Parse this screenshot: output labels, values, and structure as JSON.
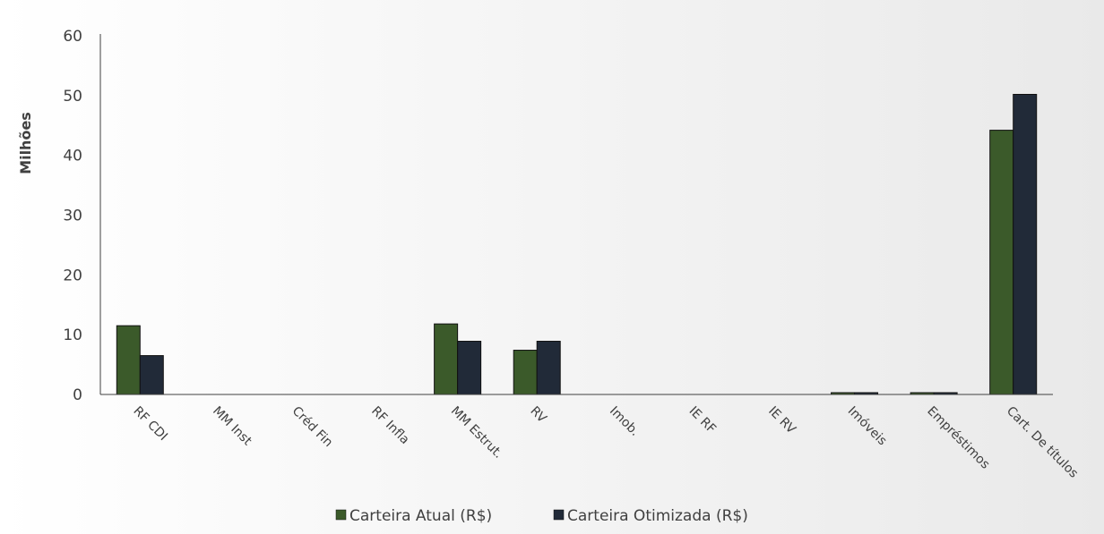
{
  "chart_data": {
    "type": "bar",
    "title": "",
    "xlabel": "",
    "ylabel": "Milhões",
    "ylim": [
      0,
      60
    ],
    "yticks": [
      0,
      10,
      20,
      30,
      40,
      50,
      60
    ],
    "grid": false,
    "legend_position": "bottom",
    "categories": [
      "RF CDI",
      "MM Inst",
      "Créd Fin",
      "RF Infla",
      "MM Estrut.",
      "RV",
      "Imob.",
      "IE RF",
      "IE RV",
      "Imóveis",
      "Empréstimos",
      "Cart. De títulos"
    ],
    "series": [
      {
        "name": "Carteira Atual (R$)",
        "color": "#3b5a2a",
        "values": [
          11.5,
          0,
          0,
          0,
          11.8,
          7.4,
          0,
          0,
          0,
          0.3,
          0.3,
          44.2
        ]
      },
      {
        "name": "Carteira Otimizada (R$)",
        "color": "#212a38",
        "values": [
          6.5,
          0,
          0,
          0,
          8.9,
          8.9,
          0,
          0,
          0,
          0.3,
          0.3,
          50.2
        ]
      }
    ]
  }
}
